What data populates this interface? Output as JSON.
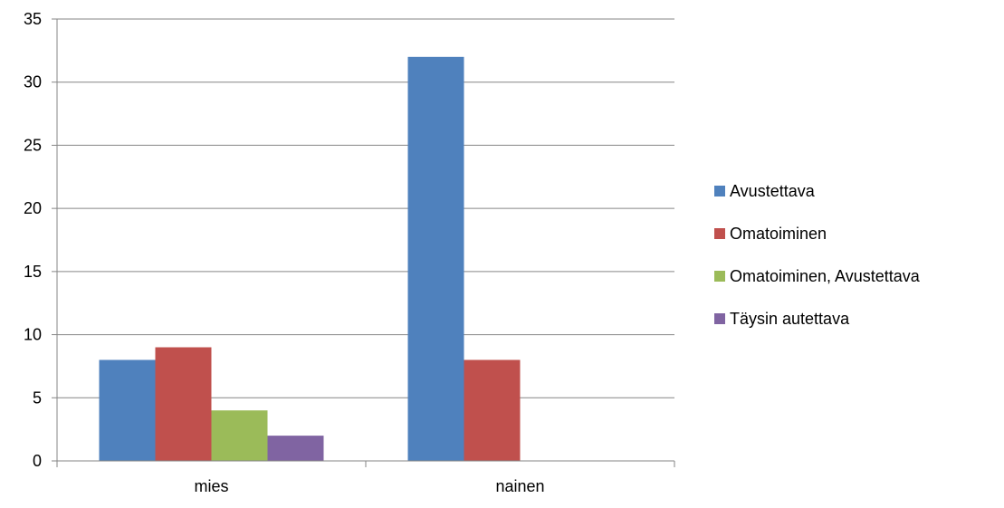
{
  "chart_data": {
    "type": "bar",
    "title": "",
    "xlabel": "",
    "ylabel": "",
    "categories": [
      "mies",
      "nainen"
    ],
    "series": [
      {
        "name": "Avustettava",
        "values": [
          8,
          32
        ],
        "color": "#4F81BD"
      },
      {
        "name": "Omatoiminen",
        "values": [
          9,
          8
        ],
        "color": "#C0504D"
      },
      {
        "name": "Omatoiminen, Avustettava",
        "values": [
          4,
          null
        ],
        "color": "#9BBB59"
      },
      {
        "name": "Täysin autettava",
        "values": [
          2,
          null
        ],
        "color": "#8064A2"
      }
    ],
    "ylim": [
      0,
      35
    ],
    "yticks": [
      0,
      5,
      10,
      15,
      20,
      25,
      30,
      35
    ],
    "grid": true,
    "legend_position": "right"
  }
}
